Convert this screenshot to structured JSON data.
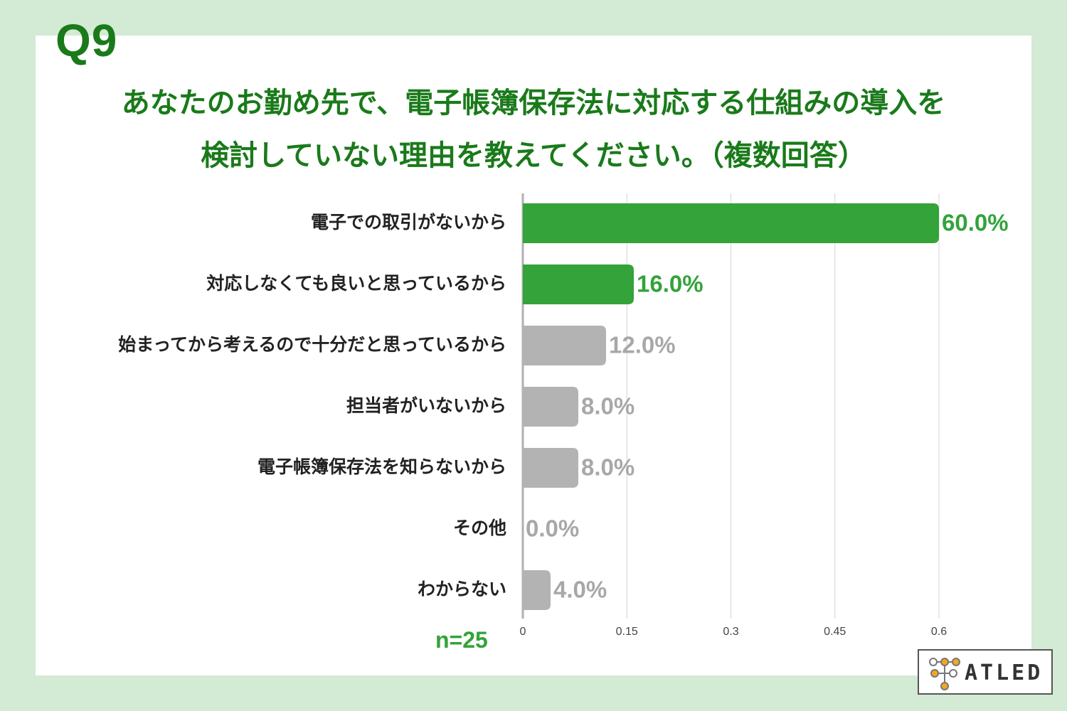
{
  "header": {
    "question_number": "Q9",
    "question_line1": "あなたのお勤め先で、電子帳簿保存法に対応する仕組みの導入を",
    "question_line2": "検討していない理由を教えてください。（複数回答）"
  },
  "sample_size": "n=25",
  "logo_text": "ATLED",
  "colors": {
    "highlight": "#33a33a",
    "muted": "#b4b3b3",
    "highlight_label": "#33a33a",
    "muted_label": "#a8a8a8",
    "title": "#1a7a1a"
  },
  "chart_data": {
    "type": "bar",
    "orientation": "horizontal",
    "categories": [
      "電子での取引がないから",
      "対応しなくても良いと思っているから",
      "始まってから考えるので十分だと思っているから",
      "担当者がいないから",
      "電子帳簿保存法を知らないから",
      "その他",
      "わからない"
    ],
    "values": [
      0.6,
      0.16,
      0.12,
      0.08,
      0.08,
      0.0,
      0.04
    ],
    "value_labels": [
      "60.0%",
      "16.0%",
      "12.0%",
      "8.0%",
      "8.0%",
      "0.0%",
      "4.0%"
    ],
    "highlighted": [
      true,
      true,
      false,
      false,
      false,
      false,
      false
    ],
    "x_ticks": [
      "0",
      "0.15",
      "0.3",
      "0.45",
      "0.6"
    ],
    "x_tick_values": [
      0,
      0.15,
      0.3,
      0.45,
      0.6
    ],
    "xlim": [
      0,
      0.6
    ],
    "grid": true
  }
}
